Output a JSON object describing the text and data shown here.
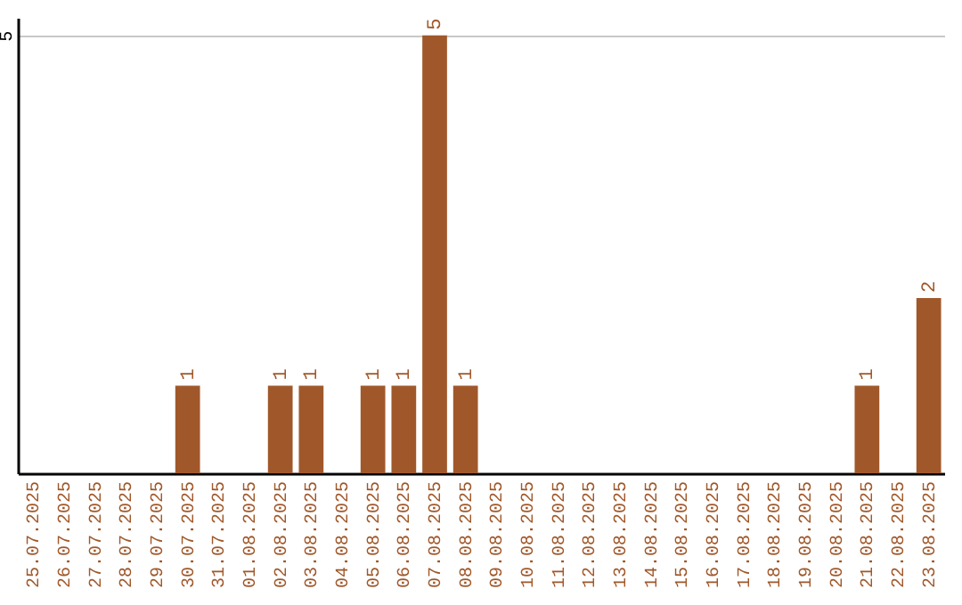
{
  "chart_data": {
    "type": "bar",
    "categories": [
      "25.07.2025",
      "26.07.2025",
      "27.07.2025",
      "28.07.2025",
      "29.07.2025",
      "30.07.2025",
      "31.07.2025",
      "01.08.2025",
      "02.08.2025",
      "03.08.2025",
      "04.08.2025",
      "05.08.2025",
      "06.08.2025",
      "07.08.2025",
      "08.08.2025",
      "09.08.2025",
      "10.08.2025",
      "11.08.2025",
      "12.08.2025",
      "13.08.2025",
      "14.08.2025",
      "15.08.2025",
      "16.08.2025",
      "17.08.2025",
      "18.08.2025",
      "19.08.2025",
      "20.08.2025",
      "21.08.2025",
      "22.08.2025",
      "23.08.2025"
    ],
    "values": [
      0,
      0,
      0,
      0,
      0,
      1,
      0,
      0,
      1,
      1,
      0,
      1,
      1,
      5,
      1,
      0,
      0,
      0,
      0,
      0,
      0,
      0,
      0,
      0,
      0,
      0,
      0,
      1,
      0,
      2
    ],
    "value_labels": [
      null,
      null,
      null,
      null,
      null,
      "1",
      null,
      null,
      "1",
      "1",
      null,
      "1",
      "1",
      "5",
      "1",
      null,
      null,
      null,
      null,
      null,
      null,
      null,
      null,
      null,
      null,
      null,
      null,
      "1",
      null,
      "2"
    ],
    "color": "#a0582a",
    "ylim": [
      0,
      5.2
    ],
    "yticks": [
      5
    ],
    "grid": "y"
  }
}
